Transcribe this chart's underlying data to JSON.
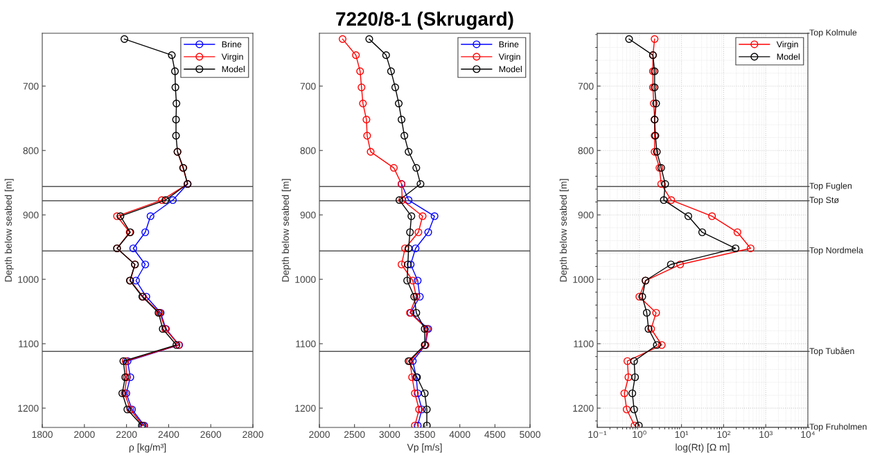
{
  "chart_data": [
    {
      "type": "line",
      "orientation": "horizontal",
      "xlabel": "ρ [kg/m³]",
      "ylabel": "Depth below seabed [m]",
      "x": [
        627,
        652,
        677,
        702,
        727,
        752,
        777,
        802,
        827,
        852,
        877,
        902,
        927,
        952,
        977,
        1002,
        1027,
        1052,
        1077,
        1102,
        1127,
        1152,
        1177,
        1202,
        1227
      ],
      "series": [
        {
          "name": "Brine",
          "color": "#0000ff",
          "values": [
            null,
            null,
            null,
            null,
            null,
            null,
            null,
            null,
            null,
            2490,
            2420,
            2314,
            2289,
            2232,
            2289,
            2245,
            2294,
            2362,
            2387,
            2450,
            2205,
            2218,
            2199,
            2226,
            2284
          ]
        },
        {
          "name": "Virgin",
          "color": "#ff0000",
          "values": [
            null,
            null,
            null,
            null,
            null,
            null,
            null,
            2442,
            2468,
            2490,
            2368,
            2155,
            2215,
            2155,
            2240,
            2218,
            2278,
            2358,
            2384,
            2448,
            2196,
            2201,
            2191,
            2218,
            2278
          ]
        },
        {
          "name": "Model",
          "color": "#000000",
          "values": [
            2190,
            2415,
            2430,
            2432,
            2437,
            2435,
            2435,
            2442,
            2470,
            2490,
            2385,
            2171,
            2218,
            2155,
            2240,
            2216,
            2275,
            2352,
            2372,
            2437,
            2185,
            2194,
            2180,
            2204,
            2273
          ]
        }
      ],
      "xlim": [
        1800,
        2800
      ],
      "xticks": [
        1800,
        2000,
        2200,
        2400,
        2600,
        2800
      ],
      "ylim": [
        1230,
        618
      ],
      "yticks": [
        700,
        800,
        900,
        1000,
        1100,
        1200
      ],
      "ref_lines": [
        {
          "axis": "y",
          "value": 856,
          "color": "#555555"
        },
        {
          "axis": "y",
          "value": 878,
          "color": "#555555"
        },
        {
          "axis": "y",
          "value": 956,
          "color": "#555555"
        },
        {
          "axis": "y",
          "value": 1112,
          "color": "#555555"
        }
      ],
      "marker": "circle",
      "line_style": "solid",
      "grid": false,
      "legend": "top right"
    },
    {
      "type": "line",
      "orientation": "horizontal",
      "title": "7220/8-1 (Skrugard)",
      "xlabel": "Vp [m/s]",
      "ylabel": "Depth below seabed [m]",
      "x": [
        627,
        652,
        677,
        702,
        727,
        752,
        777,
        802,
        827,
        852,
        877,
        902,
        927,
        952,
        977,
        1002,
        1027,
        1052,
        1077,
        1102,
        1127,
        1152,
        1177,
        1202,
        1227
      ],
      "series": [
        {
          "name": "Brine",
          "color": "#0000ff",
          "values": [
            null,
            null,
            null,
            null,
            null,
            null,
            null,
            null,
            null,
            3170,
            3270,
            3640,
            3550,
            3370,
            3300,
            3400,
            3430,
            3300,
            3550,
            3510,
            3330,
            3380,
            3400,
            3460,
            3400
          ]
        },
        {
          "name": "Virgin",
          "color": "#ff0000",
          "values": [
            2330,
            2520,
            2580,
            2600,
            2620,
            2670,
            2680,
            2730,
            3060,
            3170,
            3180,
            3470,
            3410,
            3220,
            3170,
            3330,
            3380,
            3290,
            3530,
            3510,
            3290,
            3320,
            3360,
            3420,
            3360
          ]
        },
        {
          "name": "Model",
          "color": "#000000",
          "values": [
            2710,
            2950,
            3020,
            3080,
            3130,
            3170,
            3210,
            3270,
            3380,
            3440,
            3140,
            3310,
            3290,
            3270,
            3260,
            3250,
            3350,
            3380,
            3500,
            3500,
            3270,
            3390,
            3500,
            3530,
            3530
          ]
        }
      ],
      "xlim": [
        2000,
        5000
      ],
      "xticks": [
        2000,
        2500,
        3000,
        3500,
        4000,
        4500,
        5000
      ],
      "ylim": [
        1230,
        618
      ],
      "yticks": [
        700,
        800,
        900,
        1000,
        1100,
        1200
      ],
      "ref_lines": [
        {
          "axis": "y",
          "value": 856,
          "color": "#555555"
        },
        {
          "axis": "y",
          "value": 878,
          "color": "#555555"
        },
        {
          "axis": "y",
          "value": 956,
          "color": "#555555"
        },
        {
          "axis": "y",
          "value": 1112,
          "color": "#555555"
        }
      ],
      "marker": "circle",
      "line_style": "solid",
      "grid": false,
      "legend": "top right"
    },
    {
      "type": "line",
      "orientation": "horizontal",
      "xlabel": "log(Rt) [Ω m]",
      "ylabel": "Depth below seabed [m]",
      "x": [
        627,
        652,
        677,
        702,
        727,
        752,
        777,
        802,
        827,
        852,
        877,
        902,
        927,
        952,
        977,
        1002,
        1027,
        1052,
        1077,
        1102,
        1127,
        1152,
        1177,
        1202,
        1227
      ],
      "series": [
        {
          "name": "Virgin",
          "color": "#ff0000",
          "values": [
            2.3,
            2.1,
            2.1,
            2.1,
            2.2,
            2.3,
            2.3,
            2.3,
            3.0,
            3.3,
            5.7,
            53,
            213,
            437,
            9.3,
            1.4,
            1.0,
            2.5,
            1.9,
            3.4,
            0.52,
            0.55,
            0.44,
            0.5,
            0.77
          ]
        },
        {
          "name": "Model",
          "color": "#000000",
          "values": [
            0.57,
            2.1,
            2.3,
            2.3,
            2.5,
            2.3,
            2.4,
            2.6,
            3.3,
            4.1,
            3.8,
            14.5,
            31,
            192,
            5.6,
            1.4,
            1.17,
            1.5,
            1.65,
            2.6,
            0.75,
            0.79,
            0.68,
            0.75,
            0.97
          ]
        }
      ],
      "log": "x",
      "xlim": [
        0.1,
        10000
      ],
      "xticks": [
        {
          "value": 0.1,
          "label": "10⁻¹"
        },
        {
          "value": 1,
          "label": "10⁰"
        },
        {
          "value": 10,
          "label": "10¹"
        },
        {
          "value": 100,
          "label": "10²"
        },
        {
          "value": 1000,
          "label": "10³"
        },
        {
          "value": 10000,
          "label": "10⁴"
        }
      ],
      "ylim": [
        1230,
        618
      ],
      "yticks": [
        700,
        800,
        900,
        1000,
        1100,
        1200
      ],
      "ref_lines": [
        {
          "axis": "y",
          "value": 618,
          "label": "Top Kolmule",
          "color": "#555555"
        },
        {
          "axis": "y",
          "value": 856,
          "label": "Top Fuglen",
          "color": "#555555"
        },
        {
          "axis": "y",
          "value": 878,
          "label": "Top Stø",
          "color": "#555555"
        },
        {
          "axis": "y",
          "value": 956,
          "label": "Top Nordmela",
          "color": "#555555"
        },
        {
          "axis": "y",
          "value": 1112,
          "label": "Top Tubåen",
          "color": "#555555"
        },
        {
          "axis": "y",
          "value": 1230,
          "label": "Top Fruholmen",
          "color": "#555555"
        }
      ],
      "marker": "circle",
      "line_style": "solid",
      "grid": true,
      "legend": "top right"
    }
  ]
}
